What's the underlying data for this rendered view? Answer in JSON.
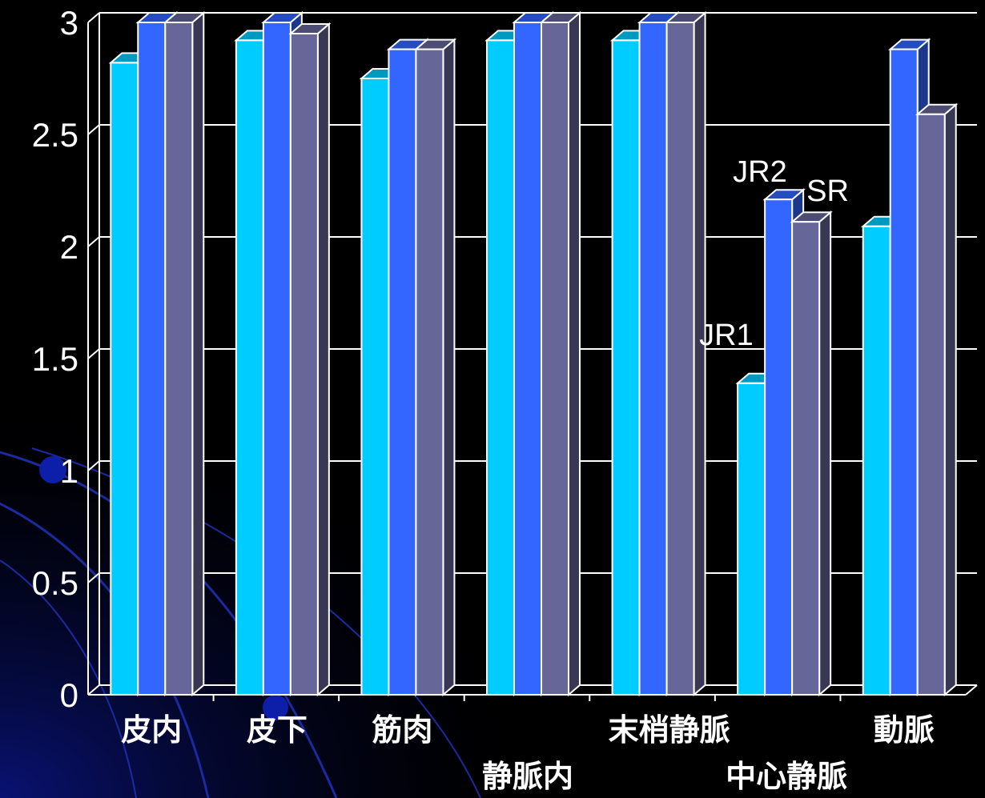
{
  "chart_data": {
    "type": "bar",
    "title": "",
    "xlabel": "",
    "ylabel": "",
    "ylim": [
      0,
      3
    ],
    "yticks": [
      "0",
      "0.5",
      "1",
      "1.5",
      "2",
      "2.5",
      "3"
    ],
    "grid": true,
    "categories": [
      "皮内",
      "皮下",
      "筋肉",
      "静脈内",
      "末梢静脈",
      "中心静脈",
      "動脈"
    ],
    "series": [
      {
        "name": "JR1",
        "color": "#00CCFF",
        "values": [
          2.82,
          2.92,
          2.75,
          2.92,
          2.92,
          1.39,
          2.09
        ]
      },
      {
        "name": "JR2",
        "color": "#3366FF",
        "values": [
          3.0,
          3.0,
          2.88,
          3.0,
          3.0,
          2.21,
          2.88
        ]
      },
      {
        "name": "SR",
        "color": "#666699",
        "values": [
          3.0,
          2.95,
          2.88,
          3.0,
          3.0,
          2.11,
          2.59
        ]
      }
    ],
    "series_label_category": "中心静脈"
  },
  "colors": {
    "background": "#000000",
    "axis": "#FFFFFF",
    "decoration": "#1a2aa0"
  }
}
